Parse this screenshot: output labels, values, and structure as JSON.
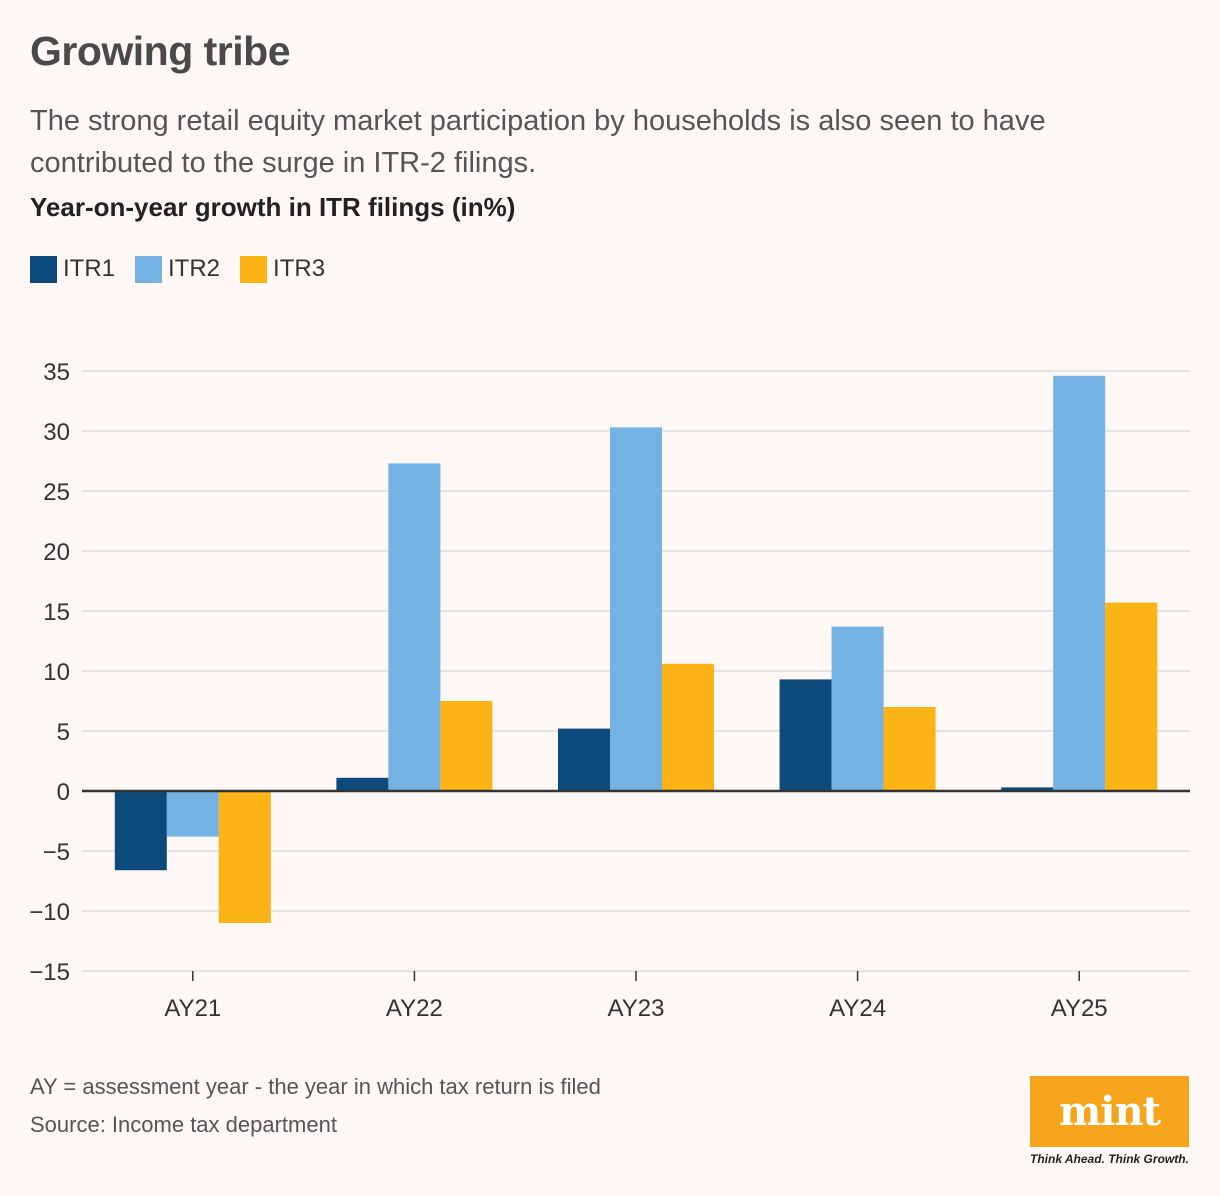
{
  "header": {
    "title": "Growing tribe",
    "subtitle": "The strong retail equity market participation by households is also seen to have contributed to the surge in ITR-2 filings.",
    "chart_heading": "Year-on-year growth in ITR filings (in%)"
  },
  "footer": {
    "note": "AY = assessment year - the year in which tax return is filed",
    "source": "Source: Income tax department",
    "logo_text": "mint",
    "tagline": "Think Ahead. Think Growth."
  },
  "colors": {
    "itr1": "#0c4a7c",
    "itr2": "#73b2e2",
    "itr3": "#fbb316",
    "grid": "#dcdcdc",
    "zero_line": "#333333",
    "logo_bg": "#f7a41d"
  },
  "chart_data": {
    "type": "bar",
    "title": "Year-on-year growth in ITR filings (in%)",
    "xlabel": "",
    "ylabel": "",
    "categories": [
      "AY21",
      "AY22",
      "AY23",
      "AY24",
      "AY25"
    ],
    "series": [
      {
        "name": "ITR1",
        "values": [
          -6.6,
          1.1,
          5.2,
          9.3,
          0.3
        ]
      },
      {
        "name": "ITR2",
        "values": [
          -3.8,
          27.3,
          30.3,
          13.7,
          34.6
        ]
      },
      {
        "name": "ITR3",
        "values": [
          -11.0,
          7.5,
          10.6,
          7.0,
          15.7
        ]
      }
    ],
    "ylim": [
      -15,
      35
    ],
    "yticks": [
      35,
      30,
      25,
      20,
      15,
      10,
      5,
      0,
      -5,
      -10,
      -15
    ],
    "ytick_labels": [
      "35",
      "30",
      "25",
      "20",
      "15",
      "10",
      "5",
      "0",
      "−5",
      "−10",
      "−15"
    ],
    "grid": true,
    "legend_position": "top-left"
  }
}
